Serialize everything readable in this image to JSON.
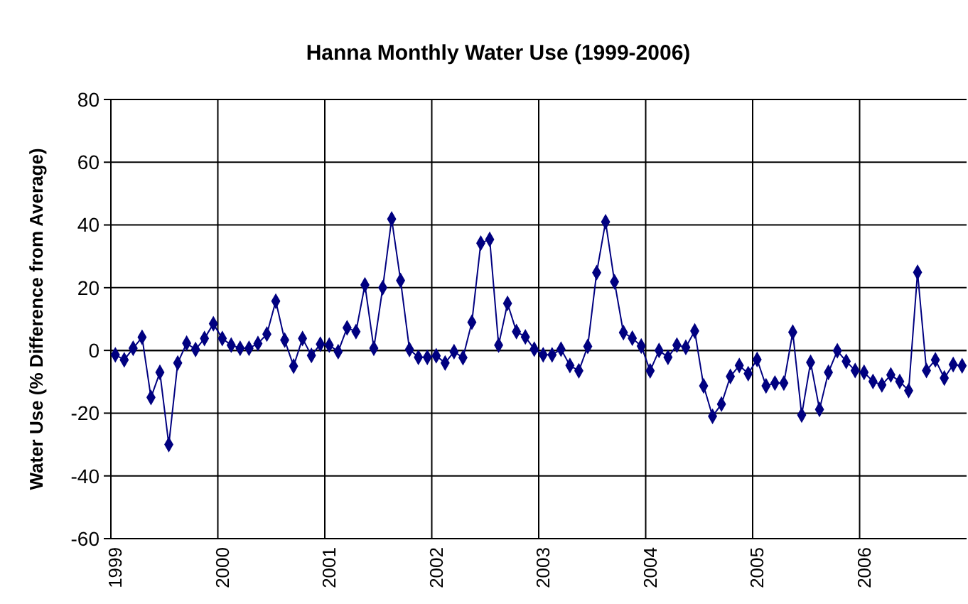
{
  "chart_data": {
    "type": "line",
    "title": "Hanna Monthly Water Use (1999-2006)",
    "ylabel": "Water Use (% Difference from Average)",
    "categories": [
      "1999",
      null,
      null,
      null,
      null,
      null,
      null,
      null,
      null,
      null,
      null,
      null,
      "2000",
      null,
      null,
      null,
      null,
      null,
      null,
      null,
      null,
      null,
      null,
      null,
      "2001",
      null,
      null,
      null,
      null,
      null,
      null,
      null,
      null,
      null,
      null,
      null,
      "2002",
      null,
      null,
      null,
      null,
      null,
      null,
      null,
      null,
      null,
      null,
      null,
      "2003",
      null,
      null,
      null,
      null,
      null,
      null,
      null,
      null,
      null,
      null,
      null,
      "2004",
      null,
      null,
      null,
      null,
      null,
      null,
      null,
      null,
      null,
      null,
      null,
      "2005",
      null,
      null,
      null,
      null,
      null,
      null,
      null,
      null,
      null,
      null,
      null,
      "2006",
      null,
      null,
      null,
      null,
      null,
      null,
      null,
      null,
      null,
      null,
      null
    ],
    "series": [
      {
        "color": "#000080",
        "values": [
          -1.4,
          -3,
          0.7,
          4.2,
          -15,
          -7,
          -30,
          -4,
          2.3,
          0.3,
          3.8,
          8.5,
          3.8,
          1.7,
          0.7,
          0.7,
          2.2,
          5.2,
          15.7,
          3.3,
          -5,
          3.8,
          -1.6,
          2,
          1.7,
          -0.4,
          7.2,
          6,
          20.9,
          0.7,
          20,
          41.9,
          22.3,
          0.3,
          -2.2,
          -2.2,
          -1.7,
          -4,
          -0.4,
          -2.3,
          9,
          34.2,
          35.4,
          1.7,
          15,
          6,
          4.3,
          0.4,
          -1.4,
          -1.4,
          0.4,
          -4.8,
          -6.5,
          1.3,
          24.8,
          41,
          21.9,
          5.7,
          3.9,
          1.4,
          -6.5,
          0,
          -2.2,
          1.7,
          1,
          6.2,
          -11.3,
          -21,
          -17.1,
          -8.3,
          -4.8,
          -7.4,
          -2.9,
          -11.3,
          -10.4,
          -10.4,
          5.8,
          -20.6,
          -3.8,
          -18.8,
          -7,
          -0.1,
          -3.5,
          -6.4,
          -7,
          -9.9,
          -11,
          -7.8,
          -9.9,
          -12.8,
          24.9,
          -6.4,
          -3,
          -8.8,
          -4.5,
          -4.9
        ]
      }
    ],
    "ylim": [
      -60,
      80
    ],
    "yticks": [
      -60,
      -40,
      -20,
      0,
      20,
      40,
      60,
      80
    ],
    "grid": true,
    "marker": "diamond",
    "line_style": "solid"
  }
}
